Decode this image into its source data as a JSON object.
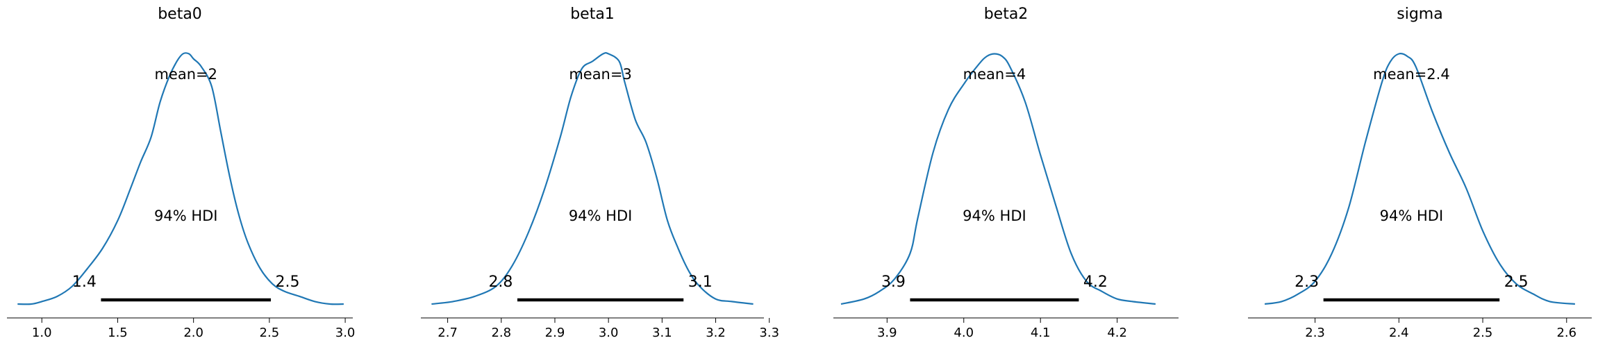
{
  "colors": {
    "curve": "#1f77b4",
    "hdi": "#000000",
    "axis": "#000000"
  },
  "chart_data": [
    {
      "type": "line",
      "title": "beta0",
      "mean_label": "mean=2",
      "hdi_label": "94% HDI",
      "hdi": [
        1.39,
        2.51
      ],
      "hdi_low_label": "1.4",
      "hdi_high_label": "2.5",
      "xlim": [
        0.77,
        3.05
      ],
      "ylim": [
        0,
        1.06
      ],
      "xticks": [
        1.0,
        1.5,
        2.0,
        2.5,
        3.0
      ],
      "xticklabels": [
        "1.0",
        "1.5",
        "2.0",
        "2.5",
        "3.0"
      ],
      "x": [
        0.84,
        0.93,
        1.0,
        1.1,
        1.2,
        1.3,
        1.4,
        1.5,
        1.58,
        1.65,
        1.72,
        1.78,
        1.84,
        1.89,
        1.93,
        1.97,
        2.0,
        2.05,
        2.12,
        2.18,
        2.24,
        2.3,
        2.36,
        2.44,
        2.52,
        2.6,
        2.7,
        2.8,
        2.9,
        2.99
      ],
      "y": [
        0.0,
        0.0,
        0.01,
        0.03,
        0.07,
        0.14,
        0.22,
        0.33,
        0.45,
        0.56,
        0.66,
        0.8,
        0.9,
        0.96,
        0.99,
        0.99,
        0.97,
        0.94,
        0.86,
        0.68,
        0.5,
        0.35,
        0.24,
        0.14,
        0.08,
        0.05,
        0.03,
        0.01,
        0.0,
        0.0
      ]
    },
    {
      "type": "line",
      "title": "beta1",
      "mean_label": "mean=3",
      "hdi_label": "94% HDI",
      "hdi": [
        2.83,
        3.14
      ],
      "hdi_low_label": "2.8",
      "hdi_high_label": "3.1",
      "xlim": [
        2.65,
        3.29
      ],
      "ylim": [
        0,
        1.06
      ],
      "xticks": [
        2.7,
        2.8,
        2.9,
        3.0,
        3.1,
        3.2,
        3.3
      ],
      "xticklabels": [
        "2.7",
        "2.8",
        "2.9",
        "3.0",
        "3.1",
        "3.2",
        "3.3"
      ],
      "x": [
        2.67,
        2.71,
        2.75,
        2.79,
        2.82,
        2.85,
        2.88,
        2.91,
        2.93,
        2.95,
        2.97,
        2.99,
        3.0,
        3.02,
        3.03,
        3.05,
        3.07,
        3.09,
        3.11,
        3.13,
        3.15,
        3.17,
        3.2,
        3.23,
        3.27
      ],
      "y": [
        0.0,
        0.01,
        0.03,
        0.07,
        0.15,
        0.28,
        0.45,
        0.66,
        0.82,
        0.93,
        0.96,
        0.99,
        0.99,
        0.96,
        0.88,
        0.73,
        0.64,
        0.5,
        0.33,
        0.22,
        0.13,
        0.07,
        0.02,
        0.01,
        0.0
      ]
    },
    {
      "type": "line",
      "title": "beta2",
      "mean_label": "mean=4",
      "hdi_label": "94% HDI",
      "hdi": [
        3.93,
        4.15
      ],
      "hdi_low_label": "3.9",
      "hdi_high_label": "4.2",
      "xlim": [
        3.83,
        4.28
      ],
      "ylim": [
        0,
        1.06
      ],
      "xticks": [
        3.9,
        4.0,
        4.1,
        4.2
      ],
      "xticklabels": [
        "3.9",
        "4.0",
        "4.1",
        "4.2"
      ],
      "x": [
        3.84,
        3.87,
        3.89,
        3.91,
        3.93,
        3.94,
        3.96,
        3.98,
        4.0,
        4.02,
        4.03,
        4.04,
        4.05,
        4.06,
        4.08,
        4.1,
        4.12,
        4.14,
        4.16,
        4.18,
        4.2,
        4.22,
        4.25
      ],
      "y": [
        0.0,
        0.02,
        0.05,
        0.1,
        0.2,
        0.34,
        0.6,
        0.77,
        0.87,
        0.95,
        0.98,
        0.99,
        0.98,
        0.94,
        0.8,
        0.59,
        0.39,
        0.2,
        0.09,
        0.05,
        0.02,
        0.01,
        0.0
      ]
    },
    {
      "type": "line",
      "title": "sigma",
      "mean_label": "mean=2.4",
      "hdi_label": "94% HDI",
      "hdi": [
        2.31,
        2.52
      ],
      "hdi_low_label": "2.3",
      "hdi_high_label": "2.5",
      "xlim": [
        2.22,
        2.63
      ],
      "ylim": [
        0,
        1.06
      ],
      "xticks": [
        2.3,
        2.4,
        2.5,
        2.6
      ],
      "xticklabels": [
        "2.3",
        "2.4",
        "2.5",
        "2.6"
      ],
      "x": [
        2.24,
        2.26,
        2.28,
        2.3,
        2.32,
        2.34,
        2.36,
        2.38,
        2.39,
        2.4,
        2.41,
        2.42,
        2.44,
        2.46,
        2.48,
        2.5,
        2.52,
        2.54,
        2.56,
        2.58,
        2.61
      ],
      "y": [
        0.0,
        0.01,
        0.04,
        0.09,
        0.2,
        0.38,
        0.64,
        0.88,
        0.96,
        0.99,
        0.98,
        0.94,
        0.76,
        0.6,
        0.46,
        0.29,
        0.16,
        0.08,
        0.04,
        0.01,
        0.0
      ]
    }
  ]
}
